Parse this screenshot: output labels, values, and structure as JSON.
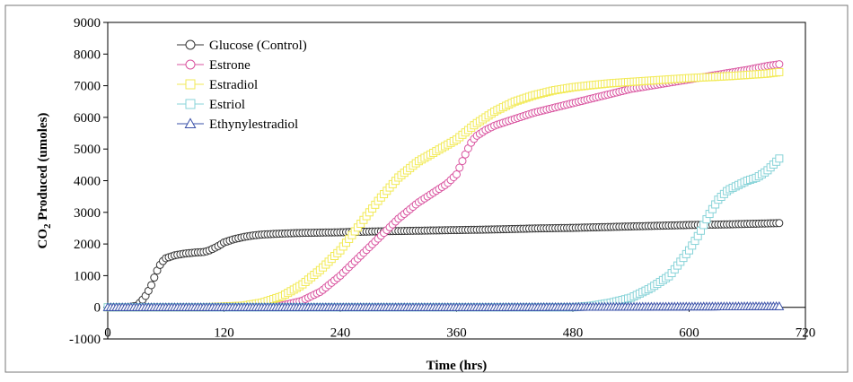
{
  "chart_data": {
    "type": "line",
    "title": "",
    "xlabel": "Time (hrs)",
    "ylabel": {
      "prefix": "CO",
      "subscript": "2",
      "suffix": " Produced (umoles)"
    },
    "xlim": [
      0,
      720
    ],
    "ylim": [
      -1000,
      9000
    ],
    "x_ticks": [
      0,
      120,
      240,
      360,
      480,
      600,
      720
    ],
    "y_ticks": [
      -1000,
      0,
      1000,
      2000,
      3000,
      4000,
      5000,
      6000,
      7000,
      8000,
      9000
    ],
    "x_tick_labels": [
      "0",
      "120",
      "240",
      "360",
      "480",
      "600",
      "720"
    ],
    "y_tick_labels": [
      "-1000",
      "0",
      "1000",
      "2000",
      "3000",
      "4000",
      "5000",
      "6000",
      "7000",
      "8000",
      "9000"
    ],
    "grid": false,
    "legend_position": "top-left",
    "series": [
      {
        "name": "Glucose (Control)",
        "marker": "circle",
        "color": "#333333",
        "x": [
          0,
          20,
          30,
          35,
          40,
          45,
          50,
          55,
          60,
          70,
          80,
          90,
          100,
          105,
          110,
          115,
          120,
          130,
          140,
          150,
          160,
          180,
          200,
          240,
          280,
          320,
          360,
          400,
          440,
          480,
          520,
          560,
          600,
          640,
          680,
          693
        ],
        "y": [
          0,
          0,
          50,
          200,
          400,
          700,
          1100,
          1400,
          1550,
          1650,
          1700,
          1730,
          1750,
          1800,
          1870,
          1950,
          2050,
          2150,
          2220,
          2270,
          2300,
          2330,
          2350,
          2370,
          2400,
          2420,
          2440,
          2460,
          2490,
          2510,
          2540,
          2570,
          2600,
          2620,
          2650,
          2660
        ]
      },
      {
        "name": "Estrone",
        "marker": "circle",
        "color": "#d9539f",
        "x": [
          0,
          100,
          150,
          180,
          200,
          220,
          240,
          260,
          280,
          300,
          320,
          340,
          350,
          360,
          365,
          370,
          375,
          380,
          390,
          400,
          420,
          440,
          460,
          480,
          500,
          520,
          540,
          560,
          580,
          600,
          620,
          640,
          660,
          680,
          693
        ],
        "y": [
          0,
          0,
          20,
          60,
          200,
          500,
          1000,
          1600,
          2200,
          2800,
          3300,
          3700,
          3900,
          4200,
          4550,
          4900,
          5200,
          5400,
          5600,
          5750,
          5950,
          6150,
          6300,
          6450,
          6600,
          6750,
          6900,
          7000,
          7100,
          7200,
          7300,
          7400,
          7500,
          7620,
          7680
        ]
      },
      {
        "name": "Estradiol",
        "marker": "square",
        "color": "#f2ea55",
        "x": [
          0,
          100,
          140,
          160,
          180,
          200,
          220,
          240,
          260,
          280,
          300,
          320,
          340,
          360,
          380,
          400,
          420,
          440,
          460,
          480,
          500,
          520,
          540,
          560,
          580,
          600,
          620,
          640,
          660,
          680,
          693
        ],
        "y": [
          0,
          0,
          50,
          150,
          350,
          700,
          1200,
          1800,
          2600,
          3400,
          4100,
          4600,
          4950,
          5300,
          5800,
          6200,
          6500,
          6700,
          6850,
          6950,
          7020,
          7080,
          7120,
          7160,
          7200,
          7240,
          7270,
          7300,
          7340,
          7380,
          7430
        ]
      },
      {
        "name": "Estriol",
        "marker": "square",
        "color": "#87d3d8",
        "x": [
          0,
          480,
          500,
          520,
          540,
          560,
          580,
          600,
          610,
          620,
          630,
          640,
          650,
          660,
          670,
          680,
          690,
          693
        ],
        "y": [
          0,
          0,
          50,
          150,
          300,
          600,
          1000,
          1800,
          2300,
          2900,
          3400,
          3700,
          3850,
          4000,
          4100,
          4300,
          4600,
          4700
        ]
      },
      {
        "name": "Ethynylestradiol",
        "marker": "triangle",
        "color": "#3a50a8",
        "x": [
          0,
          100,
          200,
          300,
          400,
          500,
          600,
          693
        ],
        "y": [
          0,
          0,
          0,
          0,
          0,
          10,
          20,
          30
        ]
      }
    ]
  }
}
